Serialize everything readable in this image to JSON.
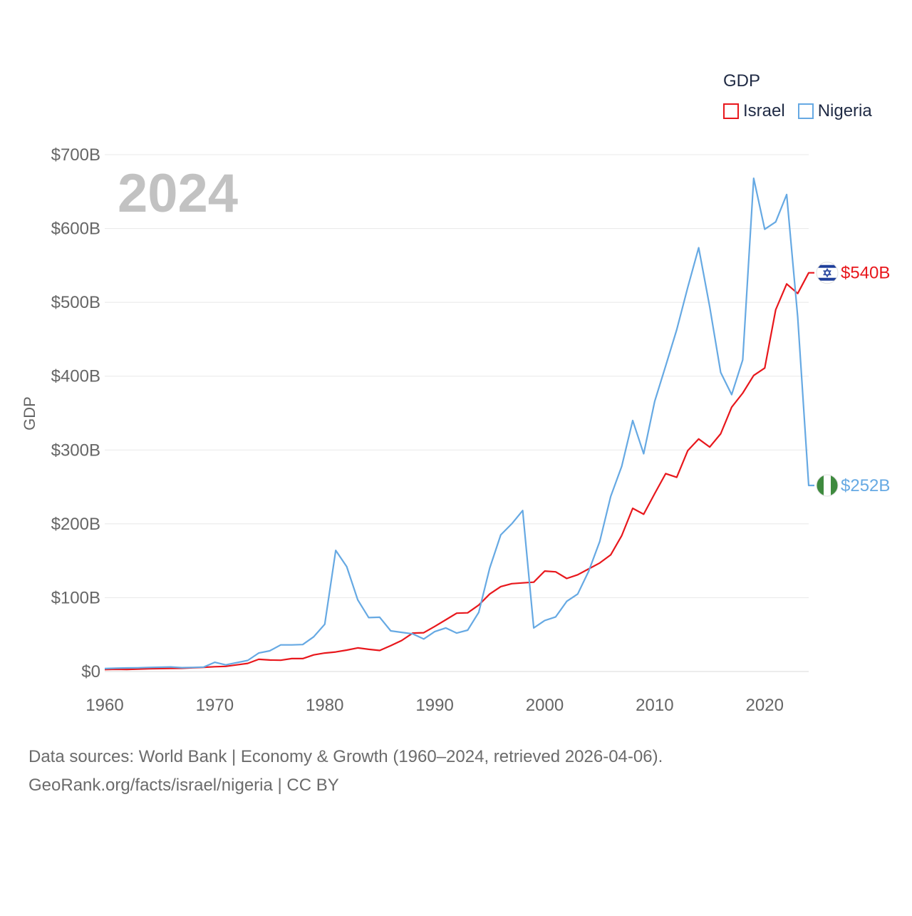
{
  "chart_data": {
    "type": "line",
    "legend_title": "GDP",
    "ylabel": "GDP",
    "year_label": "2024",
    "x": [
      1960,
      1961,
      1962,
      1963,
      1964,
      1965,
      1966,
      1967,
      1968,
      1969,
      1970,
      1971,
      1972,
      1973,
      1974,
      1975,
      1976,
      1977,
      1978,
      1979,
      1980,
      1981,
      1982,
      1983,
      1984,
      1985,
      1986,
      1987,
      1988,
      1989,
      1990,
      1991,
      1992,
      1993,
      1994,
      1995,
      1996,
      1997,
      1998,
      1999,
      2000,
      2001,
      2002,
      2003,
      2004,
      2005,
      2006,
      2007,
      2008,
      2009,
      2010,
      2011,
      2012,
      2013,
      2014,
      2015,
      2016,
      2017,
      2018,
      2019,
      2020,
      2021,
      2022,
      2023,
      2024
    ],
    "xlim": [
      1960,
      2024
    ],
    "xticks": [
      1960,
      1970,
      1980,
      1990,
      2000,
      2010,
      2020
    ],
    "xtick_labels": [
      "1960",
      "1970",
      "1980",
      "1990",
      "2000",
      "2010",
      "2020"
    ],
    "ylim": [
      0,
      700
    ],
    "yticks": [
      0,
      100,
      200,
      300,
      400,
      500,
      600,
      700
    ],
    "ytick_labels": [
      "$0",
      "$100B",
      "$200B",
      "$300B",
      "$400B",
      "$500B",
      "$600B",
      "$700B"
    ],
    "series": [
      {
        "name": "Israel",
        "color": "#e8171c",
        "end_label": "$540B",
        "flag_icon": "israel-flag-icon",
        "values": [
          2.6,
          3.0,
          2.8,
          3.2,
          3.7,
          4.0,
          4.2,
          4.3,
          5.0,
          5.7,
          6.5,
          7.0,
          9.0,
          11.0,
          16.5,
          15.5,
          15.3,
          17.5,
          17.5,
          22.5,
          25.0,
          26.5,
          29.0,
          32.0,
          30.0,
          28.5,
          35.0,
          42.0,
          52.0,
          52.5,
          61.0,
          70.0,
          79.0,
          79.5,
          90.0,
          105.0,
          115.0,
          119.0,
          120.0,
          121.0,
          136.0,
          135.0,
          126.0,
          131.0,
          139.0,
          147.0,
          158.0,
          184.0,
          221.0,
          213.0,
          241.0,
          268.0,
          263.0,
          299.0,
          315.0,
          304.0,
          322.0,
          358.0,
          377.0,
          401.0,
          411.0,
          490.0,
          525.0,
          512.0,
          540.0
        ]
      },
      {
        "name": "Nigeria",
        "color": "#66a9e3",
        "end_label": "$252B",
        "flag_icon": "nigeria-flag-icon",
        "values": [
          4.0,
          4.5,
          4.8,
          5.0,
          5.5,
          5.8,
          6.2,
          5.2,
          5.5,
          6.0,
          12.5,
          9.0,
          12.0,
          15.0,
          25.0,
          28.0,
          36.0,
          36.0,
          36.5,
          47.0,
          64.0,
          164.0,
          142.0,
          97.0,
          73.0,
          73.5,
          55.0,
          53.0,
          51.0,
          44.0,
          54.0,
          59.0,
          52.0,
          56.0,
          80.0,
          140.0,
          185.0,
          200.0,
          218.0,
          59.0,
          69.0,
          74.0,
          95.0,
          105.0,
          136.0,
          176.0,
          237.0,
          278.0,
          340.0,
          295.0,
          366.0,
          414.0,
          463.0,
          520.0,
          574.0,
          494.0,
          405.0,
          375.0,
          422.0,
          668.0,
          599.0,
          609.0,
          646.0,
          480.0,
          252.0
        ]
      }
    ]
  },
  "footer": {
    "line1": "Data sources: World Bank | Economy & Growth (1960–2024, retrieved 2026-04-06).",
    "line2": "GeoRank.org/facts/israel/nigeria | CC BY"
  }
}
